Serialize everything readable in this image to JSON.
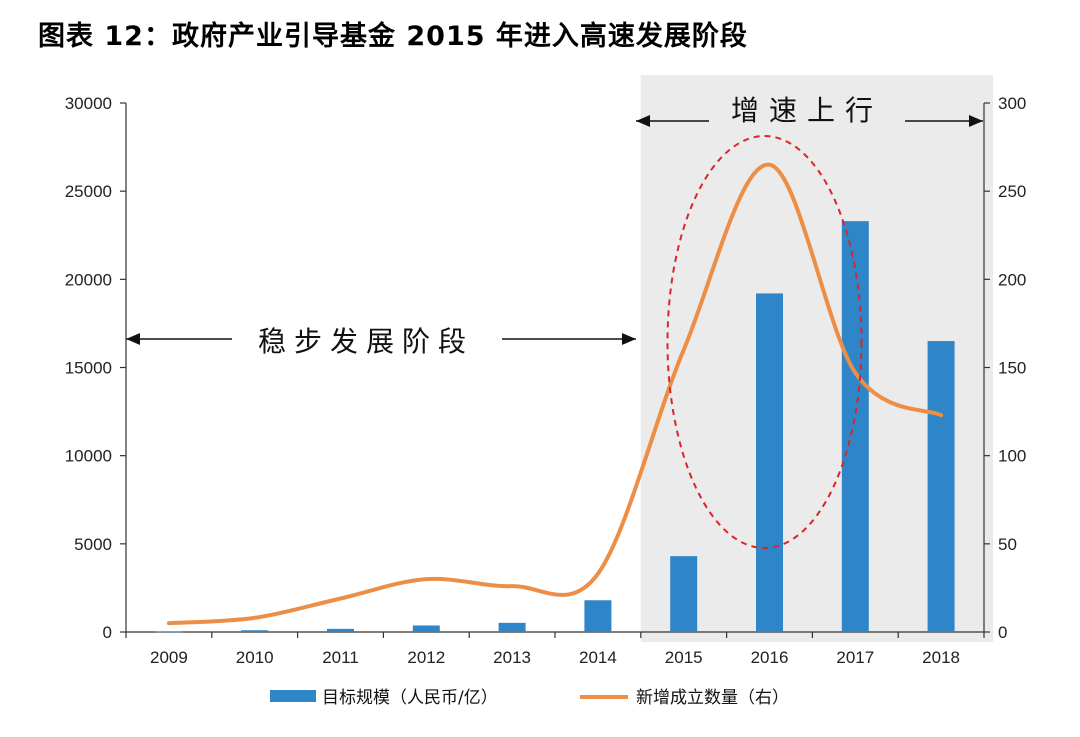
{
  "title": "图表 12：政府产业引导基金 2015 年进入高速发展阶段",
  "colors": {
    "bar": "#2E86C8",
    "line": "#ED8E46",
    "shade": "#EBEBEB",
    "ellipse": "#D9262A"
  },
  "chart_data": {
    "type": "bar",
    "categories": [
      "2009",
      "2010",
      "2011",
      "2012",
      "2013",
      "2014",
      "2015",
      "2016",
      "2017",
      "2018"
    ],
    "left_axis": {
      "min": 0,
      "max": 30000,
      "ticks": [
        0,
        5000,
        10000,
        15000,
        20000,
        25000,
        30000
      ]
    },
    "right_axis": {
      "min": 0,
      "max": 300,
      "ticks": [
        0,
        50,
        100,
        150,
        200,
        250,
        300
      ]
    },
    "series": [
      {
        "name": "目标规模（人民币/亿）",
        "type": "bar",
        "axis": "left",
        "values": [
          30,
          100,
          180,
          370,
          520,
          1800,
          4300,
          19200,
          23300,
          16500
        ]
      },
      {
        "name": "新增成立数量（右）",
        "type": "line",
        "axis": "right",
        "values": [
          5,
          8,
          19,
          30,
          26,
          33,
          160,
          265,
          147,
          123
        ]
      }
    ],
    "annotations": [
      {
        "text": "稳步发展阶段",
        "span": [
          "2009",
          "2014"
        ]
      },
      {
        "text": "增速上行",
        "span": [
          "2015",
          "2018"
        ]
      }
    ],
    "grid": false,
    "legend": "bottom"
  }
}
